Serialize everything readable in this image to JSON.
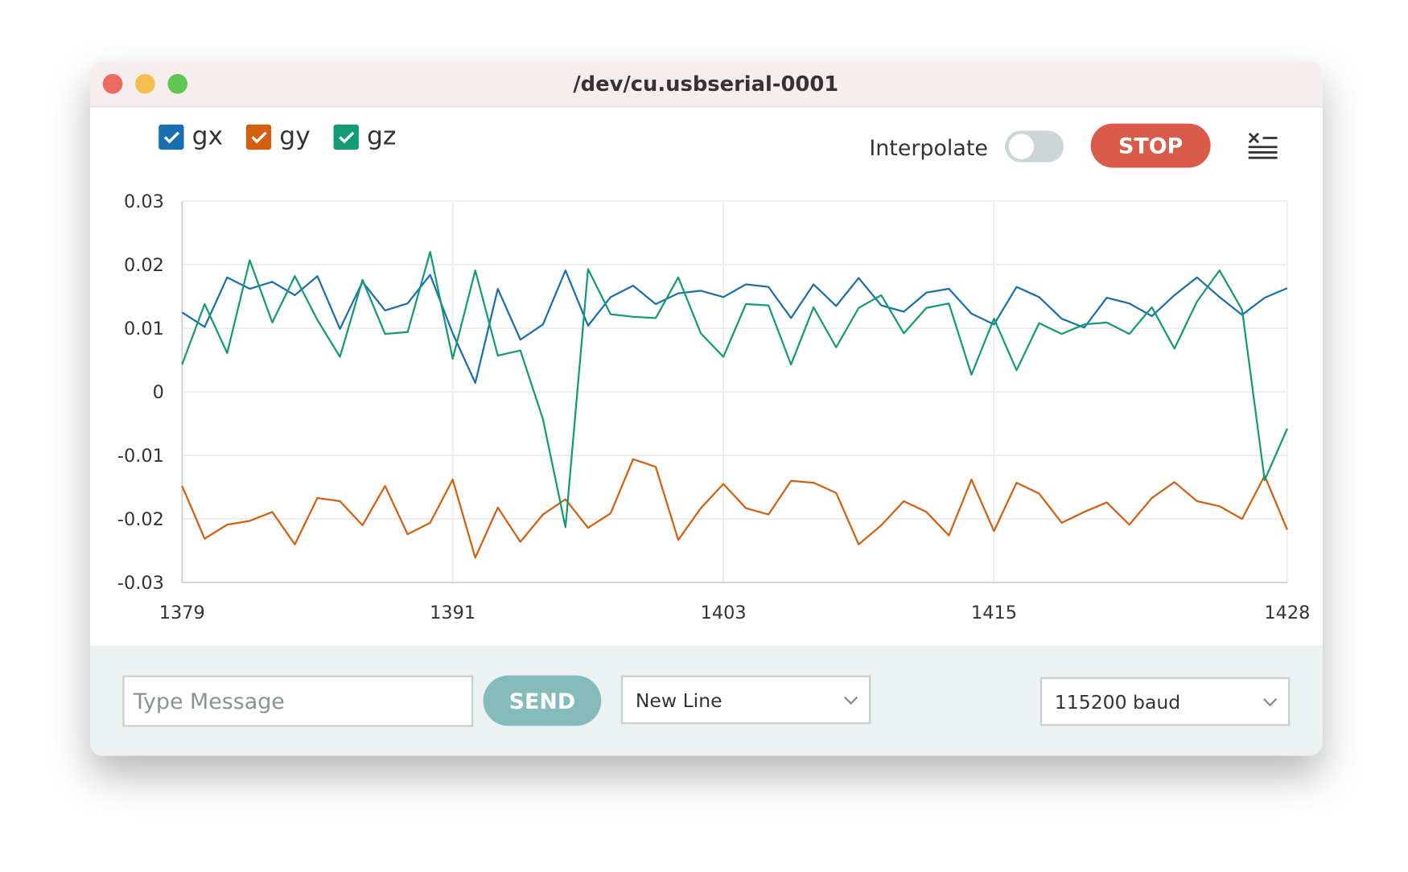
{
  "window": {
    "title": "/dev/cu.usbserial-0001"
  },
  "toolbar": {
    "interpolate_label": "Interpolate",
    "stop_button": "STOP"
  },
  "footer": {
    "message_placeholder": "Type Message",
    "send_button": "SEND",
    "line_ending": "New Line",
    "baud_rate": "115200 baud"
  },
  "chart_data": {
    "type": "line",
    "x": [
      1379,
      1380,
      1381,
      1382,
      1383,
      1384,
      1385,
      1386,
      1387,
      1388,
      1389,
      1390,
      1391,
      1392,
      1393,
      1394,
      1395,
      1396,
      1397,
      1398,
      1399,
      1400,
      1401,
      1402,
      1403,
      1404,
      1405,
      1406,
      1407,
      1408,
      1409,
      1410,
      1411,
      1412,
      1413,
      1414,
      1415,
      1416,
      1417,
      1418,
      1419,
      1420,
      1421,
      1422,
      1423,
      1424,
      1425,
      1426,
      1427,
      1428
    ],
    "series": [
      {
        "name": "gx",
        "color": "#1a6fb0",
        "values": [
          0.0125,
          0.0102,
          0.018,
          0.0162,
          0.0173,
          0.0152,
          0.0182,
          0.0099,
          0.0173,
          0.0128,
          0.0139,
          0.0184,
          0.0092,
          0.0014,
          0.0162,
          0.0082,
          0.0106,
          0.0191,
          0.0104,
          0.0149,
          0.0167,
          0.0138,
          0.0155,
          0.0159,
          0.0149,
          0.0169,
          0.0165,
          0.0116,
          0.0169,
          0.0135,
          0.0179,
          0.0136,
          0.0126,
          0.0156,
          0.0162,
          0.0123,
          0.0106,
          0.0165,
          0.0149,
          0.0115,
          0.0101,
          0.0148,
          0.0139,
          0.0119,
          0.0152,
          0.018,
          0.0149,
          0.0121,
          0.0148,
          0.0163
        ]
      },
      {
        "name": "gy",
        "color": "#d45f10",
        "values": [
          -0.0148,
          -0.0231,
          -0.0209,
          -0.0203,
          -0.0189,
          -0.024,
          -0.0167,
          -0.0172,
          -0.021,
          -0.0148,
          -0.0224,
          -0.0206,
          -0.0138,
          -0.0261,
          -0.0182,
          -0.0236,
          -0.0193,
          -0.0169,
          -0.0214,
          -0.0191,
          -0.0106,
          -0.0118,
          -0.0233,
          -0.0183,
          -0.0145,
          -0.0183,
          -0.0193,
          -0.014,
          -0.0143,
          -0.0159,
          -0.024,
          -0.021,
          -0.0172,
          -0.0189,
          -0.0226,
          -0.0138,
          -0.0219,
          -0.0143,
          -0.016,
          -0.0206,
          -0.0189,
          -0.0174,
          -0.0209,
          -0.0167,
          -0.0142,
          -0.0172,
          -0.018,
          -0.02,
          -0.0132,
          -0.0217
        ]
      },
      {
        "name": "gz",
        "color": "#129b74",
        "values": [
          0.0043,
          0.0138,
          0.0061,
          0.0207,
          0.0109,
          0.0182,
          0.0113,
          0.0055,
          0.0176,
          0.0091,
          0.0094,
          0.022,
          0.0052,
          0.0191,
          0.0057,
          0.0065,
          -0.0043,
          -0.0213,
          0.0193,
          0.0122,
          0.0118,
          0.0116,
          0.018,
          0.0092,
          0.0055,
          0.0138,
          0.0136,
          0.0043,
          0.0133,
          0.007,
          0.0132,
          0.0152,
          0.0092,
          0.0132,
          0.0139,
          0.0027,
          0.0115,
          0.0034,
          0.0108,
          0.0091,
          0.0106,
          0.0109,
          0.0091,
          0.0133,
          0.0068,
          0.0142,
          0.0191,
          0.0129,
          -0.0139,
          -0.0058
        ]
      }
    ],
    "xlim": [
      1379,
      1428
    ],
    "xticks": [
      1379,
      1391,
      1403,
      1415,
      1428
    ],
    "ylim": [
      -0.03,
      0.03
    ],
    "yticks": [
      0.03,
      0.02,
      0.01,
      0,
      -0.01,
      -0.02,
      -0.03
    ],
    "grid": true
  }
}
